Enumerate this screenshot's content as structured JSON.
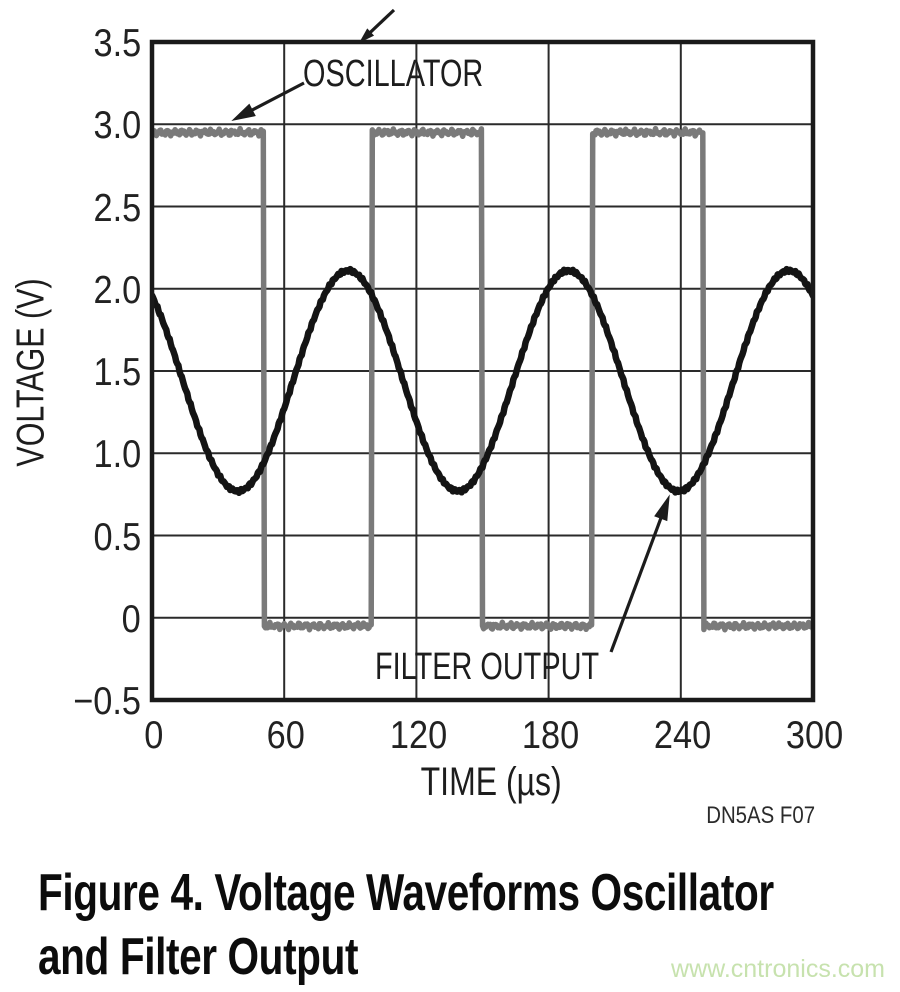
{
  "figure": {
    "caption_line1": "Figure 4. Voltage Waveforms Oscillator",
    "caption_line2": "and Filter Output",
    "source_note": "DN5AS F07",
    "watermark": "www.cntronics.com"
  },
  "colors": {
    "oscillator_trace": "#7a7a7a",
    "filter_trace": "#141414",
    "gridline": "#2a2a2a",
    "plot_border": "#1a1a1a",
    "text": "#1d1d1d",
    "watermark": "#c7e2ae"
  },
  "chart_data": {
    "type": "line",
    "title": "",
    "xlabel": "TIME (µs)",
    "ylabel": "VOLTAGE (V)",
    "xlim": [
      0,
      300
    ],
    "ylim": [
      -0.5,
      3.5
    ],
    "grid": true,
    "x_ticks": [
      0,
      60,
      120,
      180,
      240,
      300
    ],
    "y_ticks": [
      3.5,
      3.0,
      2.5,
      2.0,
      1.5,
      1.0,
      0.5,
      0,
      -0.5
    ],
    "x_tick_labels": [
      "0",
      "60",
      "120",
      "180",
      "240",
      "300"
    ],
    "y_tick_labels": [
      "3.5",
      "3.0",
      "2.5",
      "2.0",
      "1.5",
      "1.0",
      "0.5",
      "0",
      "−0.5"
    ],
    "series": [
      {
        "name": "OSCILLATOR",
        "waveform": "square",
        "color": "#7a7a7a",
        "high_v": 2.95,
        "low_v": -0.05,
        "period_us": 100,
        "duty_cycle": 0.5,
        "starts": "high",
        "edges_us": [
          51,
          100,
          150,
          200,
          250.5
        ],
        "keypoints": [
          {
            "t_us": 0,
            "v": 2.95
          },
          {
            "t_us": 51,
            "v": -0.05
          },
          {
            "t_us": 100,
            "v": 2.95
          },
          {
            "t_us": 150,
            "v": -0.05
          },
          {
            "t_us": 200,
            "v": 2.95
          },
          {
            "t_us": 250,
            "v": -0.05
          },
          {
            "t_us": 300,
            "v": -0.05
          }
        ]
      },
      {
        "name": "FILTER OUTPUT",
        "waveform": "sine",
        "color": "#141414",
        "mean_v": 1.44,
        "amplitude_v": 0.67,
        "period_us": 100,
        "peak_at_us": 89,
        "min_v": 0.77,
        "max_v": 2.11,
        "keypoints": [
          {
            "t_us": 0,
            "v": 1.97
          },
          {
            "t_us": 39,
            "v": 0.77
          },
          {
            "t_us": 89,
            "v": 2.11
          },
          {
            "t_us": 139,
            "v": 0.77
          },
          {
            "t_us": 189,
            "v": 2.11
          },
          {
            "t_us": 239,
            "v": 0.77
          },
          {
            "t_us": 289,
            "v": 2.11
          },
          {
            "t_us": 300,
            "v": 2.0
          }
        ]
      }
    ],
    "annotations": [
      {
        "label": "OSCILLATOR",
        "arrow_tip": {
          "t_us": 36,
          "v": 3.02
        }
      },
      {
        "label": "FILTER OUTPUT",
        "arrow_tip": {
          "t_us": 235,
          "v": 0.75
        }
      }
    ],
    "legend_position": "none"
  }
}
